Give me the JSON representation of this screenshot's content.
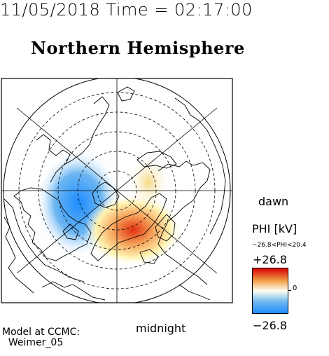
{
  "timestamp": "11/05/2018 Time = 02:17:00",
  "title": "Northern Hemisphere",
  "labels": {
    "dawn": "dawn",
    "midnight": "midnight"
  },
  "colorbar": {
    "title": "PHI [kV]",
    "range_text": "−26.8<PHI<20.4",
    "max_label": "+26.8",
    "min_label": "−26.8",
    "zero_label": "0",
    "colors": {
      "max": "#d60000",
      "mid": "#fffff2",
      "min": "#1e8cff"
    }
  },
  "credit": "Model at CCMC:\n  Weimer_05"
}
